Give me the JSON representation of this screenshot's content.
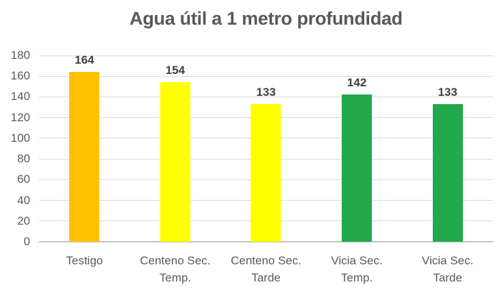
{
  "chart_data": {
    "type": "bar",
    "title": "Agua útil a 1 metro profundidad",
    "categories": [
      "Testigo",
      "Centeno Sec. Temp.",
      "Centeno Sec. Tarde",
      "Vicia Sec. Temp.",
      "Vicia Sec. Tarde"
    ],
    "values": [
      164,
      154,
      133,
      142,
      133
    ],
    "data_labels": [
      "164",
      "154",
      "133",
      "142",
      "133"
    ],
    "bar_colors": [
      "#FFC000",
      "#FFFF00",
      "#FFFF00",
      "#22A94C",
      "#22A94C"
    ],
    "xlabel": "",
    "ylabel": "",
    "ylim": [
      0,
      180
    ],
    "yticks": [
      0,
      20,
      40,
      60,
      80,
      100,
      120,
      140,
      160,
      180
    ],
    "grid": true,
    "legend": false,
    "colors": {
      "gridline": "#D9D9D9",
      "axis_line": "#C3C3C3",
      "title_text": "#595959",
      "axis_text": "#595959",
      "data_label_text": "#3F3F3F",
      "background": "#FFFFFF"
    }
  }
}
